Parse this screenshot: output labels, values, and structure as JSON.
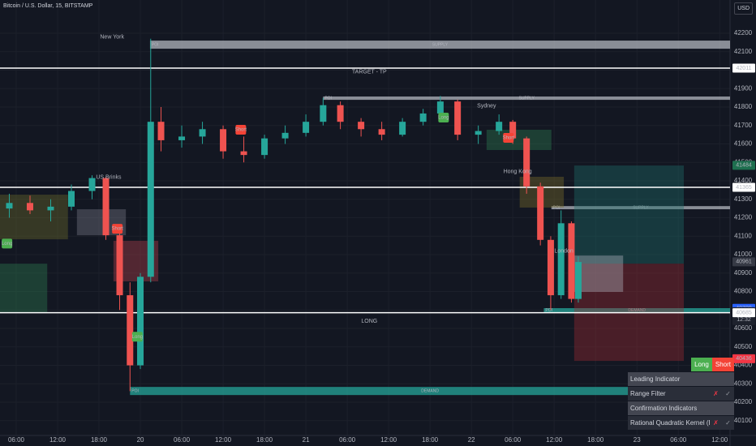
{
  "header": {
    "symbol": "Bitcoin / U.S. Dollar, 15, BITSTAMP",
    "currency": "USD"
  },
  "chart_data": {
    "type": "candlestick",
    "x": [
      -1,
      2,
      5,
      8,
      11,
      13,
      15,
      16.5,
      18,
      19.5,
      21,
      24,
      27,
      30,
      33,
      36,
      39,
      42,
      44.5,
      47,
      50,
      53,
      56,
      59,
      61.5,
      64,
      67,
      70,
      72,
      74,
      76,
      77.5,
      79,
      80.5,
      81.5
    ],
    "open": [
      41250,
      41280,
      41240,
      41260,
      41345,
      41415,
      41105,
      40780,
      40400,
      40880,
      41720,
      41620,
      41640,
      41680,
      41560,
      41540,
      41630,
      41660,
      41720,
      41810,
      41720,
      41680,
      41650,
      41720,
      41765,
      41830,
      41650,
      41670,
      41720,
      41630,
      41370,
      41080,
      40780,
      41170,
      40760
    ],
    "high": [
      41330,
      41320,
      41300,
      41380,
      41430,
      41420,
      41150,
      40850,
      40900,
      42170,
      41800,
      41700,
      41720,
      41700,
      41640,
      41650,
      41700,
      41760,
      41850,
      41830,
      41740,
      41720,
      41740,
      41790,
      41860,
      41840,
      41700,
      41760,
      41730,
      41640,
      41390,
      41100,
      41240,
      41180,
      40990
    ],
    "low": [
      41200,
      41220,
      41180,
      41240,
      41300,
      41080,
      40700,
      40260,
      40380,
      40850,
      41560,
      41580,
      41600,
      41520,
      41500,
      41520,
      41600,
      41640,
      41700,
      41680,
      41640,
      41620,
      41640,
      41700,
      41740,
      41620,
      41600,
      41650,
      41600,
      41330,
      41050,
      40700,
      40760,
      40740,
      40740
    ],
    "close": [
      41280,
      41240,
      41260,
      41345,
      41415,
      41105,
      40780,
      40400,
      40880,
      41720,
      41620,
      41640,
      41680,
      41560,
      41540,
      41630,
      41660,
      41720,
      41810,
      41720,
      41680,
      41650,
      41720,
      41765,
      41830,
      41650,
      41670,
      41720,
      41630,
      41370,
      41080,
      40780,
      41170,
      40760,
      40960
    ],
    "up_color": "#26a69a",
    "down_color": "#ef5350",
    "xlim": [
      -2.35,
      103.5
    ],
    "ylim": [
      40020,
      42380
    ],
    "xticks": [
      {
        "value": 0,
        "label": "06:00"
      },
      {
        "value": 6,
        "label": "12:00"
      },
      {
        "value": 12,
        "label": "18:00"
      },
      {
        "value": 18,
        "label": "20"
      },
      {
        "value": 24,
        "label": "06:00"
      },
      {
        "value": 30,
        "label": "12:00"
      },
      {
        "value": 36,
        "label": "18:00"
      },
      {
        "value": 42,
        "label": "21"
      },
      {
        "value": 48,
        "label": "06:00"
      },
      {
        "value": 54,
        "label": "12:00"
      },
      {
        "value": 60,
        "label": "18:00"
      },
      {
        "value": 66,
        "label": "22"
      },
      {
        "value": 72,
        "label": "06:00"
      },
      {
        "value": 78,
        "label": "12:00"
      },
      {
        "value": 84,
        "label": "18:00"
      },
      {
        "value": 90,
        "label": "23"
      },
      {
        "value": 96,
        "label": "06:00"
      },
      {
        "value": 102,
        "label": "12:00"
      }
    ],
    "yticks": [
      40100,
      40200,
      40300,
      40400,
      40500,
      40600,
      40700,
      40800,
      40900,
      41000,
      41100,
      41200,
      41300,
      41400,
      41500,
      41600,
      41700,
      41800,
      41900,
      42000,
      42100,
      42200
    ],
    "grid": true,
    "levels": [
      42011,
      41365,
      40685
    ],
    "zones": [
      {
        "label": "SUPPLY",
        "tag": "POI",
        "x": [
          19.4,
          103.5
        ],
        "y": [
          42116,
          42160
        ],
        "color": "#b2b5be"
      },
      {
        "label": "SUPPLY",
        "tag": "POI",
        "x": [
          44.5,
          103.5
        ],
        "y": [
          41839,
          41857
        ],
        "color": "#b2b5be"
      },
      {
        "label": "SUPPLY",
        "tag": "POI",
        "x": [
          77.6,
          103.5
        ],
        "y": [
          41246,
          41263
        ],
        "color": "#b2b5be"
      },
      {
        "label": "DEMAND",
        "tag": "POI",
        "x": [
          16.5,
          103.5
        ],
        "y": [
          40239,
          40283
        ],
        "color": "#26a69a"
      },
      {
        "label": "DEMAND",
        "tag": "POI",
        "x": [
          76.5,
          103.5
        ],
        "y": [
          40688,
          40710
        ],
        "color": "#26a69a"
      },
      {
        "x": [
          -2.35,
          4.5
        ],
        "y": [
          40688,
          40951
        ],
        "color": "#2e7d4f"
      },
      {
        "x": [
          -2.35,
          7.5
        ],
        "y": [
          41083,
          41325
        ],
        "color": "#6b6b2a"
      },
      {
        "x": [
          8.8,
          15.9
        ],
        "y": [
          41105,
          41246
        ],
        "color": "#787b86"
      },
      {
        "x": [
          14.1,
          20.6
        ],
        "y": [
          40855,
          41075
        ],
        "color": "#b2404a"
      },
      {
        "x": [
          68.2,
          77.6
        ],
        "y": [
          41567,
          41677
        ],
        "color": "#2e7d4f"
      },
      {
        "x": [
          73,
          79.4
        ],
        "y": [
          41255,
          41422
        ],
        "color": "#7a6f2a"
      },
      {
        "x": [
          80.9,
          96.8
        ],
        "y": [
          40951,
          41483
        ],
        "color": "#1e6f68"
      },
      {
        "x": [
          80.9,
          96.8
        ],
        "y": [
          40424,
          40951
        ],
        "color": "#9c2b33"
      },
      {
        "x": [
          80.5,
          88
        ],
        "y": [
          40798,
          40995
        ],
        "color": "#b2b5be"
      }
    ],
    "signals": [
      {
        "text": "Long",
        "x": -2.1,
        "y": 41060,
        "color": "#4caf50"
      },
      {
        "text": "Short",
        "x": 13.9,
        "y": 41140,
        "color": "#f44336"
      },
      {
        "text": "Long",
        "x": 16.8,
        "y": 40555,
        "color": "#4caf50"
      },
      {
        "text": "Short",
        "x": 31.8,
        "y": 41677,
        "color": "#f44336"
      },
      {
        "text": "Long",
        "x": 61.2,
        "y": 41743,
        "color": "#4caf50"
      },
      {
        "text": "Short",
        "x": 70.6,
        "y": 41633,
        "color": "#f44336"
      }
    ],
    "annotations": [
      {
        "text": "New York",
        "x": 13.9,
        "y": 42180,
        "color": "#c94848"
      },
      {
        "text": "US Brinks",
        "x": 13.4,
        "y": 41420,
        "color": "#d1d4dc"
      },
      {
        "text": "Sydney",
        "x": 68.2,
        "y": 41805,
        "color": "#4caf50"
      },
      {
        "text": "Hong Kong",
        "x": 72.7,
        "y": 41450,
        "color": "#e08a3c"
      },
      {
        "text": "London",
        "x": 79.4,
        "y": 41020,
        "color": "#787b86"
      },
      {
        "text": "TARGET - TP",
        "x": 51.2,
        "y": 41990,
        "color": "#4caf50"
      },
      {
        "text": "LONG",
        "x": 51.2,
        "y": 40640,
        "color": "#ffeb3b"
      }
    ],
    "price_labels": [
      {
        "value": 42011,
        "color": "#ffffff",
        "text_color": "#131722"
      },
      {
        "value": 41484,
        "color": "#1e6f4f",
        "text_color": "#ffffff"
      },
      {
        "value": 41365,
        "color": "#ffffff",
        "text_color": "#131722"
      },
      {
        "value": 40961,
        "color": "#363a45",
        "text_color": "#ffffff"
      },
      {
        "value": 40709,
        "color": "#2962ff",
        "text_color": "#ffffff"
      },
      {
        "value": 40691,
        "color": "#1e222d",
        "text_color": "#ffffff",
        "countdown": "12:32"
      },
      {
        "value": 40685,
        "color": "#ffffff",
        "text_color": "#131722"
      },
      {
        "value": 40436,
        "color": "#f23645",
        "text_color": "#ffffff"
      }
    ]
  },
  "panel": {
    "buttons": [
      "Long",
      "Short"
    ],
    "rows": [
      {
        "label": "Leading Indicator"
      },
      {
        "label": "Range Filter",
        "cells": [
          "✗",
          "✓"
        ]
      },
      {
        "label": "Confirmation Indicators"
      },
      {
        "label": "Rational Quadratic Kernel (RQK)",
        "cells": [
          "✗",
          "✓"
        ]
      }
    ]
  }
}
